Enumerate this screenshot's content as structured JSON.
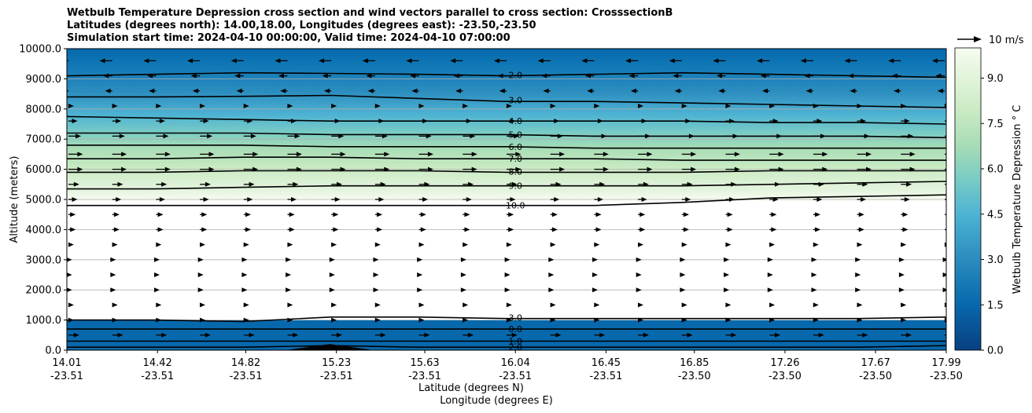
{
  "chart_data": {
    "type": "contour_cross_section",
    "title_lines": [
      "Wetbulb Temperature Depression cross section and wind vectors parallel to cross section: CrosssectionB",
      "Latitudes (degrees north): 14.00,18.00, Longitudes (degrees east): -23.50,-23.50",
      "Simulation start time: 2024-04-10 00:00:00, Valid time: 2024-04-10 07:00:00"
    ],
    "ylabel": "Altitude (meters)",
    "xlabel_lat": "Latitude (degrees N)",
    "xlabel_lon": "Longitude (degrees E)",
    "ylim": [
      0,
      10000
    ],
    "yticks": [
      "0.0",
      "1000.0",
      "2000.0",
      "3000.0",
      "4000.0",
      "5000.0",
      "6000.0",
      "7000.0",
      "8000.0",
      "9000.0",
      "10000.0"
    ],
    "xlim": [
      14.01,
      17.99
    ],
    "xticks_lat": [
      "14.01",
      "14.42",
      "14.82",
      "15.23",
      "15.63",
      "16.04",
      "16.45",
      "16.85",
      "17.26",
      "17.67",
      "17.99"
    ],
    "xticks_lon": [
      "-23.51",
      "-23.51",
      "-23.51",
      "-23.51",
      "-23.51",
      "-23.51",
      "-23.51",
      "-23.50",
      "-23.50",
      "-23.50",
      "-23.50"
    ],
    "colorbar": {
      "label": "Wetbulb Temperature Depression ° C",
      "range": [
        0,
        10
      ],
      "ticks": [
        "0.0",
        "1.5",
        "3.0",
        "4.5",
        "6.0",
        "7.5",
        "9.0"
      ],
      "colors": [
        "#08589e",
        "#2b8cbe",
        "#4eb3d3",
        "#7bccc4",
        "#a8ddb5",
        "#ccebc5",
        "#f7fcf0"
      ]
    },
    "wind_key": {
      "label": "10 m/s",
      "speed": 10
    },
    "contours": [
      {
        "level": "2.0",
        "alt": [
          9100,
          9150,
          9200,
          9180,
          9150,
          9100,
          9150,
          9200,
          9150,
          9100,
          9050
        ]
      },
      {
        "level": "3.0",
        "alt": [
          8400,
          8400,
          8420,
          8450,
          8350,
          8250,
          8250,
          8200,
          8150,
          8100,
          8050
        ]
      },
      {
        "level": "4.0",
        "alt": [
          7750,
          7700,
          7650,
          7600,
          7600,
          7600,
          7600,
          7600,
          7550,
          7550,
          7500
        ]
      },
      {
        "level": "5.0",
        "alt": [
          7200,
          7200,
          7200,
          7150,
          7150,
          7150,
          7100,
          7100,
          7100,
          7100,
          7050
        ]
      },
      {
        "level": "6.0",
        "alt": [
          6800,
          6800,
          6800,
          6750,
          6750,
          6750,
          6700,
          6700,
          6700,
          6700,
          6700
        ]
      },
      {
        "level": "7.0",
        "alt": [
          6350,
          6350,
          6400,
          6400,
          6350,
          6350,
          6350,
          6300,
          6300,
          6300,
          6300
        ]
      },
      {
        "level": "8.0",
        "alt": [
          5900,
          5900,
          5950,
          5950,
          5950,
          5900,
          5900,
          5900,
          5950,
          5950,
          5950
        ]
      },
      {
        "level": "9.0",
        "alt": [
          5350,
          5350,
          5400,
          5450,
          5450,
          5450,
          5450,
          5450,
          5500,
          5550,
          5600
        ]
      },
      {
        "level": "10.0",
        "alt": [
          4800,
          4800,
          4800,
          4800,
          4800,
          4800,
          4800,
          4900,
          5050,
          5100,
          5150
        ]
      },
      {
        "level": "2.0",
        "alt": [
          100,
          100,
          100,
          150,
          100,
          100,
          100,
          100,
          100,
          100,
          150
        ]
      },
      {
        "level": "1.0",
        "alt": [
          300,
          300,
          300,
          300,
          300,
          300,
          300,
          300,
          300,
          300,
          300
        ]
      },
      {
        "level": "0.0",
        "alt": [
          700,
          700,
          700,
          700,
          700,
          700,
          700,
          700,
          700,
          700,
          700
        ]
      },
      {
        "level": "3.0",
        "alt": [
          1000,
          1000,
          950,
          1100,
          1100,
          1050,
          1050,
          1050,
          1050,
          1050,
          1100
        ]
      }
    ],
    "wind_levels": [
      {
        "alt": 9600,
        "u": -7
      },
      {
        "alt": 9100,
        "u": -5
      },
      {
        "alt": 8600,
        "u": -4
      },
      {
        "alt": 8100,
        "u": 3
      },
      {
        "alt": 7600,
        "u": 5
      },
      {
        "alt": 7100,
        "u": 7
      },
      {
        "alt": 6500,
        "u": 8
      },
      {
        "alt": 6000,
        "u": 8
      },
      {
        "alt": 5500,
        "u": 6
      },
      {
        "alt": 5000,
        "u": 5
      },
      {
        "alt": 4500,
        "u": 4
      },
      {
        "alt": 4000,
        "u": 4
      },
      {
        "alt": 3500,
        "u": 3
      },
      {
        "alt": 3000,
        "u": 2
      },
      {
        "alt": 2500,
        "u": 2
      },
      {
        "alt": 2000,
        "u": 2
      },
      {
        "alt": 1500,
        "u": 3
      },
      {
        "alt": 1000,
        "u": 3
      },
      {
        "alt": 500,
        "u": 6
      }
    ],
    "terrain": {
      "lat": [
        15.0,
        15.2,
        15.4
      ],
      "alt": [
        0,
        200,
        0
      ]
    },
    "grid": true
  }
}
